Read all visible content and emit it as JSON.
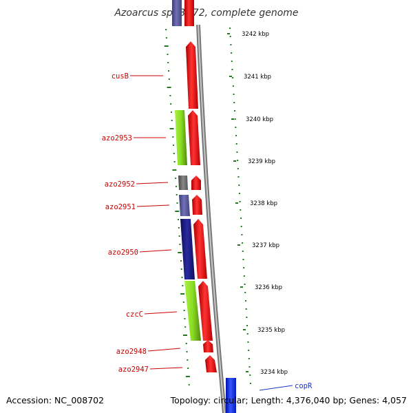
{
  "title": "Azoarcus sp. BH72, complete genome",
  "footer": {
    "accession": "Accession: NC_008702",
    "topology": "Topology: circular; Length: 4,376,040 bp; Genes: 4,057"
  },
  "colors": {
    "red": "#ee1111",
    "navy": "#1a1a88",
    "slate": "#555599",
    "lime": "#88dd22",
    "gray": "#666666",
    "blue": "#1a33ee",
    "label_red": "#cc0000",
    "label_blue": "#1a33cc",
    "tick_green": "#227722"
  },
  "kbp_ticks": [
    "3242 kbp",
    "3241 kbp",
    "3240 kbp",
    "3239 kbp",
    "3238 kbp",
    "3237 kbp",
    "3236 kbp",
    "3235 kbp",
    "3234 kbp"
  ],
  "left_genes": [
    {
      "label": "cusB",
      "color": "label_red"
    },
    {
      "label": "azo2953",
      "color": "label_red"
    },
    {
      "label": "azo2952",
      "color": "label_red"
    },
    {
      "label": "azo2951",
      "color": "label_red"
    },
    {
      "label": "azo2950",
      "color": "label_red"
    },
    {
      "label": "czcC",
      "color": "label_red"
    },
    {
      "label": "azo2948",
      "color": "label_red"
    },
    {
      "label": "azo2947",
      "color": "label_red"
    }
  ],
  "right_genes": [
    {
      "label": "copR",
      "color": "label_blue"
    }
  ]
}
